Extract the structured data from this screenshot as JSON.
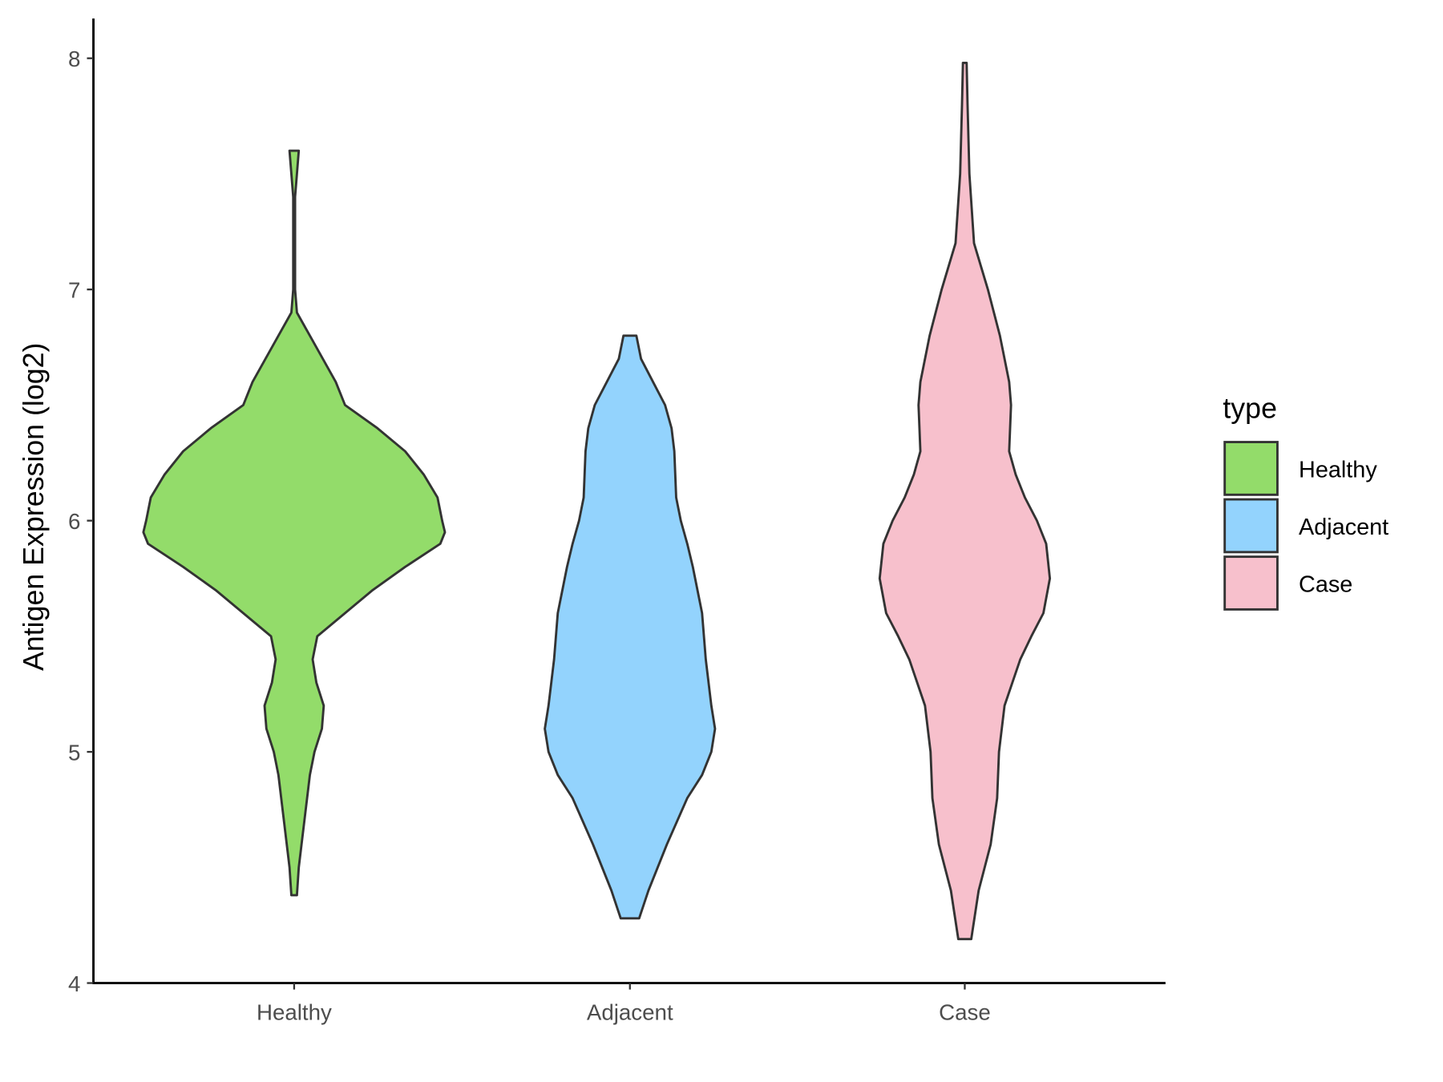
{
  "chart_data": {
    "type": "violin",
    "title": "",
    "xlabel": "",
    "ylabel": "Antigen Expression (log2)",
    "ylim": [
      4,
      8
    ],
    "yticks": [
      4,
      5,
      6,
      7,
      8
    ],
    "categories": [
      "Healthy",
      "Adjacent",
      "Case"
    ],
    "legend": {
      "title": "type",
      "placement": "right",
      "entries": [
        "Healthy",
        "Adjacent",
        "Case"
      ]
    },
    "grid": false,
    "series": [
      {
        "name": "Healthy",
        "color": "#93DC6A",
        "min": 4.38,
        "max": 7.6,
        "profile": [
          [
            7.6,
            5
          ],
          [
            7.4,
            1
          ],
          [
            7.0,
            1
          ],
          [
            6.9,
            3
          ],
          [
            6.8,
            17
          ],
          [
            6.6,
            45
          ],
          [
            6.5,
            55
          ],
          [
            6.4,
            90
          ],
          [
            6.3,
            120
          ],
          [
            6.2,
            140
          ],
          [
            6.1,
            155
          ],
          [
            6.0,
            160
          ],
          [
            5.95,
            163
          ],
          [
            5.9,
            158
          ],
          [
            5.8,
            120
          ],
          [
            5.7,
            85
          ],
          [
            5.6,
            55
          ],
          [
            5.5,
            25
          ],
          [
            5.4,
            20
          ],
          [
            5.3,
            24
          ],
          [
            5.2,
            32
          ],
          [
            5.1,
            30
          ],
          [
            5.0,
            22
          ],
          [
            4.9,
            17
          ],
          [
            4.8,
            14
          ],
          [
            4.6,
            8
          ],
          [
            4.5,
            5
          ],
          [
            4.38,
            3
          ]
        ]
      },
      {
        "name": "Adjacent",
        "color": "#93D3FD",
        "min": 4.28,
        "max": 6.8,
        "profile": [
          [
            6.8,
            7
          ],
          [
            6.7,
            12
          ],
          [
            6.6,
            25
          ],
          [
            6.5,
            38
          ],
          [
            6.4,
            45
          ],
          [
            6.3,
            48
          ],
          [
            6.1,
            50
          ],
          [
            6.0,
            55
          ],
          [
            5.9,
            62
          ],
          [
            5.8,
            68
          ],
          [
            5.6,
            78
          ],
          [
            5.4,
            82
          ],
          [
            5.2,
            88
          ],
          [
            5.1,
            92
          ],
          [
            5.0,
            88
          ],
          [
            4.9,
            78
          ],
          [
            4.8,
            62
          ],
          [
            4.6,
            40
          ],
          [
            4.4,
            20
          ],
          [
            4.28,
            10
          ]
        ]
      },
      {
        "name": "Case",
        "color": "#F7C0CC",
        "min": 4.19,
        "max": 7.98,
        "profile": [
          [
            7.98,
            2
          ],
          [
            7.8,
            3
          ],
          [
            7.5,
            5
          ],
          [
            7.2,
            10
          ],
          [
            7.0,
            25
          ],
          [
            6.8,
            38
          ],
          [
            6.6,
            48
          ],
          [
            6.5,
            50
          ],
          [
            6.4,
            49
          ],
          [
            6.3,
            48
          ],
          [
            6.2,
            55
          ],
          [
            6.1,
            65
          ],
          [
            6.0,
            78
          ],
          [
            5.9,
            88
          ],
          [
            5.75,
            92
          ],
          [
            5.6,
            85
          ],
          [
            5.5,
            72
          ],
          [
            5.4,
            60
          ],
          [
            5.2,
            43
          ],
          [
            5.0,
            37
          ],
          [
            4.8,
            35
          ],
          [
            4.6,
            28
          ],
          [
            4.4,
            15
          ],
          [
            4.19,
            7
          ]
        ]
      }
    ]
  }
}
